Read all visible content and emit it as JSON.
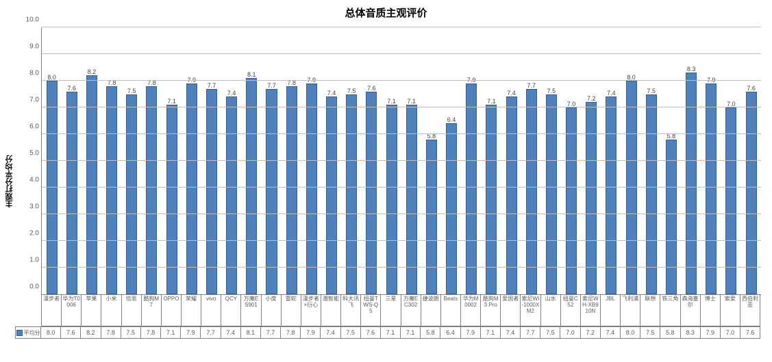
{
  "chart": {
    "type": "bar",
    "title": "总体音质主观评价",
    "title_fontsize": 15,
    "y_axis_label": "主观打分平均分",
    "ylim": [
      0,
      10
    ],
    "ytick_step": 1.0,
    "yticks": [
      "0.0",
      "1.0",
      "2.0",
      "3.0",
      "4.0",
      "5.0",
      "6.0",
      "7.0",
      "8.0",
      "9.0",
      "10.0"
    ],
    "grid_color": "#bfbfbf",
    "axis_color": "#808080",
    "bar_color": "#4f81bd",
    "bar_border_color": "#385d8a",
    "background_color": "#ffffff",
    "bar_width": 0.55,
    "label_fontsize": 11,
    "tick_fontsize": 10,
    "value_fontsize": 9,
    "series_name": "平均分",
    "categories": [
      "漫步者",
      "华为T0006",
      "苹果",
      "小米",
      "倍思",
      "酷狗M7",
      "OPPO",
      "荣耀",
      "vivo",
      "QCY",
      "万魔ES901",
      "小度",
      "雷蛇",
      "漫步者×衍心",
      "潮智能",
      "科大讯飞",
      "纽曼TWS-Q5",
      "三星",
      "万魔EC302",
      "捷波朗",
      "Beats",
      "华为M0002",
      "酷狗M3 Pro",
      "爱国者",
      "索尼WI-1000XM2",
      "山水",
      "纽曼C52",
      "索尼WH-XB910N",
      "JBL",
      "飞利浦",
      "联想",
      "铁三角",
      "森海塞尔",
      "博士",
      "索爱",
      "西伯利亚"
    ],
    "values": [
      8.0,
      7.6,
      8.2,
      7.8,
      7.5,
      7.8,
      7.1,
      7.9,
      7.7,
      7.4,
      8.1,
      7.7,
      7.8,
      7.9,
      7.4,
      7.5,
      7.6,
      7.1,
      7.1,
      5.8,
      6.4,
      7.9,
      7.1,
      7.4,
      7.7,
      7.5,
      7.0,
      7.2,
      7.4,
      8.0,
      7.5,
      5.8,
      8.3,
      7.9,
      7.0,
      7.6
    ],
    "value_labels": [
      "8.0",
      "7.6",
      "8.2",
      "7.8",
      "7.5",
      "7.8",
      "7.1",
      "7.9",
      "7.7",
      "7.4",
      "8.1",
      "7.7",
      "7.8",
      "7.9",
      "7.4",
      "7.5",
      "7.6",
      "7.1",
      "7.1",
      "5.8",
      "6.4",
      "7.9",
      "7.1",
      "7.4",
      "7.7",
      "7.5",
      "7.0",
      "7.2",
      "7.4",
      "8.0",
      "7.5",
      "5.8",
      "8.3",
      "7.9",
      "7.0",
      "7.6"
    ]
  }
}
